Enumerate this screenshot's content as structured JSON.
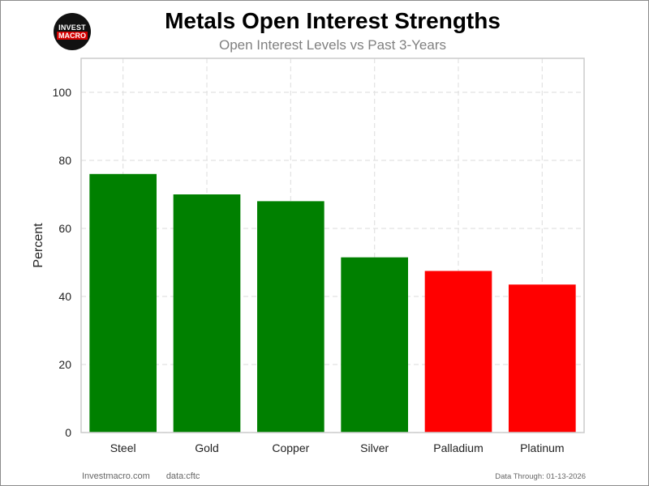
{
  "logo": {
    "line1": "INVEST",
    "line2": "MACRO"
  },
  "header": {
    "title": "Metals Open Interest Strengths",
    "subtitle": "Open Interest Levels vs Past 3-Years"
  },
  "footer": {
    "site": "Investmacro.com",
    "source": "data:cftc",
    "data_through": "Data Through: 01-13-2026"
  },
  "colors": {
    "positive": "#008000",
    "negative": "#ff0000",
    "grid": "#e2e2e2",
    "axis_frame": "#cccccc"
  },
  "chart_data": {
    "type": "bar",
    "title": "Metals Open Interest Strengths",
    "subtitle": "Open Interest Levels vs Past 3-Years",
    "xlabel": "",
    "ylabel": "Percent",
    "ylim": [
      0,
      110
    ],
    "yticks": [
      0,
      20,
      40,
      60,
      80,
      100
    ],
    "grid": true,
    "categories": [
      "Steel",
      "Gold",
      "Copper",
      "Silver",
      "Palladium",
      "Platinum"
    ],
    "values": [
      76,
      70,
      68,
      51.5,
      47.5,
      43.5
    ],
    "bar_colors": [
      "#008000",
      "#008000",
      "#008000",
      "#008000",
      "#ff0000",
      "#ff0000"
    ]
  }
}
